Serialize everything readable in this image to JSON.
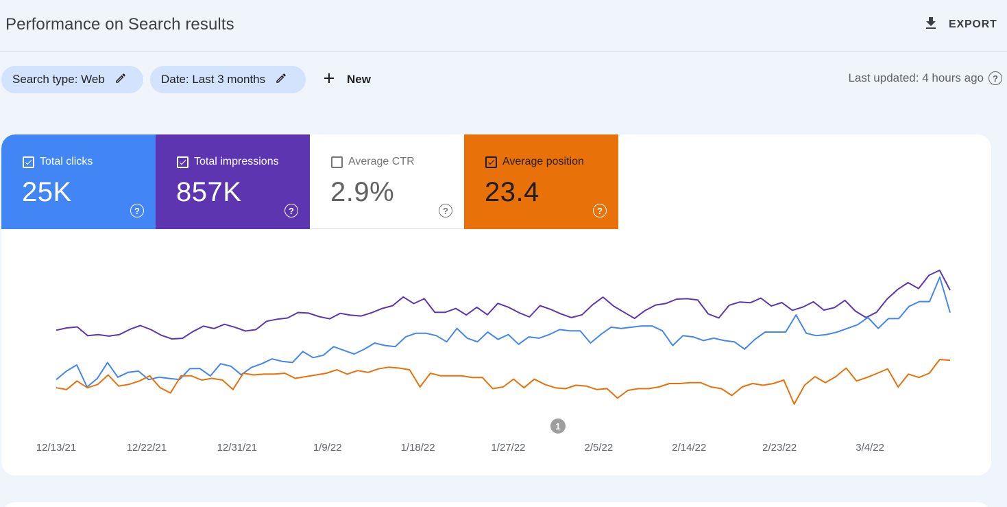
{
  "header": {
    "title": "Performance on Search results",
    "export_label": "EXPORT"
  },
  "filters": {
    "search_type": "Search type: Web",
    "date": "Date: Last 3 months",
    "new_label": "New",
    "last_updated": "Last updated: 4 hours ago"
  },
  "metrics": [
    {
      "label": "Total clicks",
      "value": "25K",
      "checked": true,
      "color": "#4285f4"
    },
    {
      "label": "Total impressions",
      "value": "857K",
      "checked": true,
      "color": "#5e35b1"
    },
    {
      "label": "Average CTR",
      "value": "2.9%",
      "checked": false,
      "color": "#ffffff"
    },
    {
      "label": "Average position",
      "value": "23.4",
      "checked": true,
      "color": "#e8710a"
    }
  ],
  "annotation_marker": "1",
  "chart_data": {
    "type": "line",
    "x_tick_labels": [
      "12/13/21",
      "12/22/21",
      "12/31/21",
      "1/9/22",
      "1/18/22",
      "1/27/22",
      "2/5/22",
      "2/14/22",
      "2/23/22",
      "3/4/22"
    ],
    "y_axis_visible": false,
    "grid": false,
    "series": [
      {
        "name": "Total impressions",
        "color": "#5e35b1",
        "values": [
          5.5,
          6.6,
          7.1,
          2.8,
          3.3,
          2.6,
          3.3,
          5.9,
          7.8,
          5.8,
          3.0,
          1.2,
          1.5,
          4.8,
          7.5,
          6.3,
          8.4,
          6.9,
          5.1,
          5.8,
          9.9,
          10.9,
          11.5,
          14.2,
          13.9,
          12.2,
          11.1,
          13.8,
          12.9,
          12.5,
          14.1,
          16.2,
          17.6,
          21.9,
          18.6,
          21.0,
          14.3,
          14.3,
          16.2,
          13.0,
          16.8,
          13.1,
          18.7,
          16.8,
          14.1,
          12.0,
          17.6,
          15.8,
          13.5,
          11.7,
          13.1,
          18.0,
          21.8,
          17.4,
          14.3,
          11.3,
          15.2,
          17.9,
          18.7,
          20.8,
          21.0,
          20.4,
          13.5,
          11.5,
          17.8,
          19.4,
          19.0,
          21.3,
          17.4,
          19.1,
          15.3,
          16.9,
          19.5,
          15.4,
          16.6,
          20.2,
          14.9,
          11.7,
          14.3,
          20.8,
          25.5,
          28.9,
          26.0,
          32.6,
          35.0,
          25.2
        ]
      },
      {
        "name": "Total clicks",
        "color": "#4285f4",
        "values": [
          13.3,
          14.0,
          14.5,
          12.7,
          13.4,
          14.7,
          13.5,
          13.9,
          14.0,
          13.3,
          13.5,
          13.4,
          13.3,
          14.2,
          14.2,
          13.6,
          14.6,
          14.4,
          13.7,
          14.3,
          14.6,
          15.0,
          14.8,
          14.7,
          15.6,
          15.1,
          15.3,
          16.0,
          15.7,
          15.4,
          15.8,
          16.3,
          16.1,
          16.0,
          16.8,
          17.1,
          17.1,
          16.9,
          16.4,
          17.5,
          16.7,
          16.4,
          17.2,
          16.6,
          17.0,
          16.2,
          16.8,
          16.7,
          17.0,
          17.4,
          17.3,
          17.3,
          16.3,
          17.0,
          17.6,
          17.5,
          17.6,
          17.7,
          17.7,
          17.3,
          16.1,
          16.9,
          16.8,
          16.5,
          16.7,
          16.5,
          16.4,
          15.8,
          16.6,
          17.2,
          17.2,
          17.2,
          18.6,
          17.1,
          16.9,
          17.0,
          17.2,
          17.5,
          17.8,
          18.4,
          17.5,
          18.3,
          18.3,
          19.3,
          19.7,
          19.7,
          21.7,
          18.8
        ]
      },
      {
        "name": "Average position",
        "color": "#e8710a",
        "values": [
          25.4,
          25.6,
          24.6,
          25.4,
          25.0,
          23.9,
          25.2,
          25.0,
          24.6,
          24.0,
          25.4,
          26.0,
          24.0,
          24.0,
          24.5,
          24.3,
          24.5,
          25.6,
          23.7,
          23.9,
          23.8,
          23.8,
          23.7,
          24.3,
          24.1,
          23.9,
          23.7,
          23.3,
          23.8,
          23.4,
          23.6,
          23.2,
          23.0,
          23.1,
          23.3,
          25.3,
          23.7,
          24.0,
          24.0,
          24.0,
          24.2,
          24.2,
          25.5,
          25.3,
          24.4,
          25.4,
          24.4,
          25.0,
          25.4,
          25.5,
          25.1,
          25.2,
          25.6,
          25.5,
          26.6,
          25.7,
          25.5,
          25.5,
          25.3,
          24.9,
          24.9,
          24.8,
          24.8,
          25.3,
          25.5,
          26.3,
          25.3,
          24.9,
          25.1,
          24.9,
          24.5,
          27.3,
          25.1,
          24.1,
          24.8,
          24.1,
          23.1,
          24.6,
          24.2,
          23.7,
          23.2,
          25.3,
          23.8,
          24.2,
          23.7,
          22.1,
          22.2
        ]
      }
    ]
  }
}
